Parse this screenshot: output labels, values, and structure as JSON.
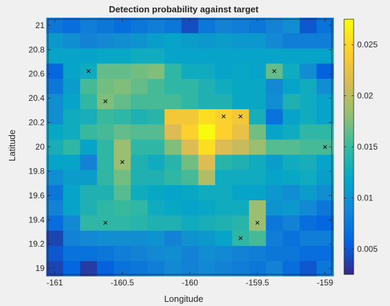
{
  "chart_data": {
    "type": "heatmap",
    "title": "Detection probability against target",
    "xlabel": "Longitude",
    "ylabel": "Latitude",
    "xlim": [
      -161.05,
      -158.95
    ],
    "ylim": [
      18.95,
      21.05
    ],
    "x_ticks": [
      -161,
      -160.5,
      -160,
      -159.5,
      -159
    ],
    "x_tick_labels": [
      "-161",
      "-160.5",
      "-160",
      "-159.5",
      "-159"
    ],
    "y_ticks": [
      19,
      19.2,
      19.4,
      19.6,
      19.8,
      20,
      20.2,
      20.4,
      20.6,
      20.8,
      21
    ],
    "y_tick_labels": [
      "19",
      "19.2",
      "19.4",
      "19.6",
      "19.8",
      "20",
      "20.2",
      "20.4",
      "20.6",
      "20.8",
      "21"
    ],
    "grid_x_start": -161,
    "grid_y_start": 19,
    "grid_step": 0.125,
    "clim": [
      0.0025,
      0.0275
    ],
    "colorbar_ticks": [
      0.005,
      0.01,
      0.015,
      0.02,
      0.025
    ],
    "colorbar_tick_labels": [
      "0.005",
      "0.01",
      "0.015",
      "0.02",
      "0.025"
    ],
    "colormap": "parula",
    "values": [
      [
        0.004,
        0.006,
        0.0035,
        0.0055,
        0.007,
        0.0075,
        0.008,
        0.009,
        0.0085,
        0.009,
        0.0085,
        0.008,
        0.0075,
        0.0085,
        0.0065,
        0.005,
        0.0075
      ],
      [
        0.005,
        0.007,
        0.007,
        0.0075,
        0.008,
        0.0085,
        0.009,
        0.0095,
        0.0085,
        0.0095,
        0.009,
        0.0085,
        0.008,
        0.0075,
        0.0075,
        0.0065,
        0.0065
      ],
      [
        0.004,
        0.0085,
        0.009,
        0.0095,
        0.0095,
        0.0095,
        0.01,
        0.0085,
        0.01,
        0.0105,
        0.0115,
        0.0145,
        0.0155,
        0.008,
        0.007,
        0.008,
        0.008
      ],
      [
        0.0065,
        0.009,
        0.0145,
        0.0145,
        0.0145,
        0.014,
        0.0135,
        0.0135,
        0.0125,
        0.013,
        0.0135,
        0.014,
        0.0185,
        0.0075,
        0.0085,
        0.0065,
        0.006
      ],
      [
        0.0085,
        0.0115,
        0.0135,
        0.0145,
        0.015,
        0.0145,
        0.0125,
        0.012,
        0.0115,
        0.012,
        0.0125,
        0.0125,
        0.0185,
        0.01,
        0.0105,
        0.009,
        0.0075
      ],
      [
        0.0075,
        0.0115,
        0.0135,
        0.0135,
        0.016,
        0.0125,
        0.012,
        0.0115,
        0.012,
        0.0125,
        0.0125,
        0.0115,
        0.0115,
        0.0105,
        0.0095,
        0.011,
        0.0095
      ],
      [
        0.0095,
        0.011,
        0.011,
        0.0145,
        0.017,
        0.0135,
        0.0135,
        0.0145,
        0.0155,
        0.0195,
        0.0125,
        0.0125,
        0.0125,
        0.0115,
        0.012,
        0.0125,
        0.011
      ],
      [
        0.0115,
        0.0115,
        0.0085,
        0.0145,
        0.0185,
        0.0135,
        0.0125,
        0.014,
        0.017,
        0.0215,
        0.014,
        0.0135,
        0.0125,
        0.011,
        0.0125,
        0.013,
        0.0115
      ],
      [
        0.013,
        0.0145,
        0.0115,
        0.0145,
        0.0185,
        0.0145,
        0.0145,
        0.0175,
        0.0215,
        0.0255,
        0.0215,
        0.0205,
        0.0185,
        0.016,
        0.016,
        0.0155,
        0.0155
      ],
      [
        0.012,
        0.0125,
        0.015,
        0.0155,
        0.0165,
        0.016,
        0.016,
        0.0215,
        0.0245,
        0.0275,
        0.0245,
        0.0225,
        0.017,
        0.0115,
        0.0125,
        0.0145,
        0.0145
      ],
      [
        0.0095,
        0.0125,
        0.013,
        0.015,
        0.0145,
        0.0135,
        0.014,
        0.0235,
        0.0235,
        0.0255,
        0.0245,
        0.0235,
        0.013,
        0.007,
        0.0115,
        0.0125,
        0.0115
      ],
      [
        0.0095,
        0.0115,
        0.0145,
        0.0175,
        0.0165,
        0.0155,
        0.0155,
        0.0155,
        0.0145,
        0.0135,
        0.0135,
        0.012,
        0.012,
        0.0095,
        0.0135,
        0.0125,
        0.0115
      ],
      [
        0.0075,
        0.011,
        0.0155,
        0.017,
        0.0175,
        0.0165,
        0.0155,
        0.0145,
        0.0145,
        0.0135,
        0.0125,
        0.012,
        0.012,
        0.009,
        0.0115,
        0.0125,
        0.0095
      ],
      [
        0.006,
        0.0115,
        0.0125,
        0.0165,
        0.0165,
        0.017,
        0.0175,
        0.0145,
        0.0125,
        0.0125,
        0.0115,
        0.012,
        0.0115,
        0.0165,
        0.0125,
        0.0095,
        0.0055
      ],
      [
        0.0115,
        0.0115,
        0.0115,
        0.012,
        0.012,
        0.0125,
        0.0125,
        0.0115,
        0.0115,
        0.0115,
        0.0115,
        0.0115,
        0.0115,
        0.0115,
        0.0115,
        0.0115,
        0.0115
      ],
      [
        0.0105,
        0.0095,
        0.0085,
        0.009,
        0.0095,
        0.01,
        0.011,
        0.0115,
        0.011,
        0.0105,
        0.011,
        0.0105,
        0.0105,
        0.009,
        0.008,
        0.008,
        0.008
      ],
      [
        0.0075,
        0.0065,
        0.008,
        0.0075,
        0.0065,
        0.0075,
        0.008,
        0.0075,
        0.0045,
        0.0075,
        0.0085,
        0.008,
        0.0075,
        0.0085,
        0.0095,
        0.005,
        0.007
      ]
    ],
    "markers": [
      {
        "x": -160.75,
        "y": 20.625
      },
      {
        "x": -160.625,
        "y": 20.375
      },
      {
        "x": -159.375,
        "y": 20.625
      },
      {
        "x": -159.75,
        "y": 20.25
      },
      {
        "x": -159.625,
        "y": 20.25
      },
      {
        "x": -160.5,
        "y": 19.875
      },
      {
        "x": -159,
        "y": 20
      },
      {
        "x": -160.625,
        "y": 19.375
      },
      {
        "x": -159.5,
        "y": 19.375
      },
      {
        "x": -159.625,
        "y": 19.25
      }
    ],
    "marker_symbol": "×",
    "grid": false,
    "colorbar_position": "right"
  }
}
